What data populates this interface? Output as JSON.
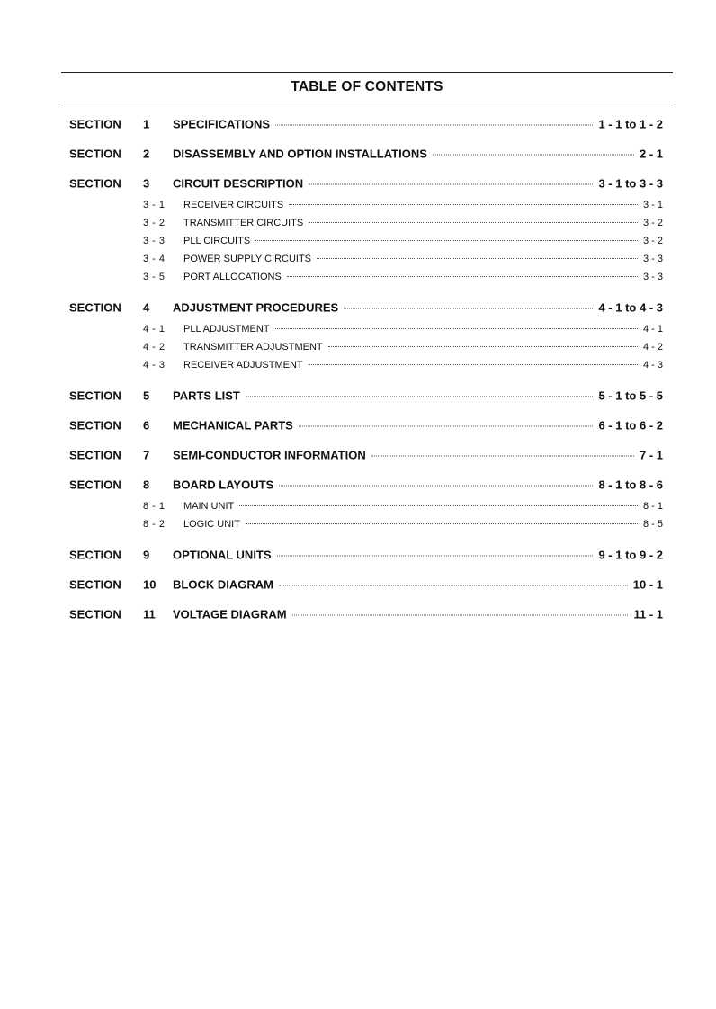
{
  "title": "TABLE OF CONTENTS",
  "section_label": "SECTION",
  "sections": [
    {
      "number": "1",
      "title": "SPECIFICATIONS",
      "pages": "1 - 1 to 1 - 2",
      "subsections": []
    },
    {
      "number": "2",
      "title": "DISASSEMBLY AND OPTION INSTALLATIONS",
      "pages": "2 - 1",
      "subsections": []
    },
    {
      "number": "3",
      "title": "CIRCUIT DESCRIPTION",
      "pages": "3 - 1 to 3 - 3",
      "subsections": [
        {
          "number": "3 - 1",
          "title": "RECEIVER CIRCUITS",
          "pages": "3 - 1"
        },
        {
          "number": "3 - 2",
          "title": "TRANSMITTER CIRCUITS",
          "pages": "3 - 2"
        },
        {
          "number": "3 - 3",
          "title": "PLL CIRCUITS",
          "pages": "3 - 2"
        },
        {
          "number": "3 - 4",
          "title": "POWER SUPPLY CIRCUITS",
          "pages": "3 - 3"
        },
        {
          "number": "3 - 5",
          "title": "PORT ALLOCATIONS",
          "pages": "3 - 3"
        }
      ]
    },
    {
      "number": "4",
      "title": "ADJUSTMENT PROCEDURES",
      "pages": "4 - 1 to 4 - 3",
      "subsections": [
        {
          "number": "4 - 1",
          "title": "PLL ADJUSTMENT",
          "pages": "4 - 1"
        },
        {
          "number": "4 - 2",
          "title": "TRANSMITTER ADJUSTMENT",
          "pages": "4 - 2"
        },
        {
          "number": "4 - 3",
          "title": "RECEIVER ADJUSTMENT",
          "pages": "4 - 3"
        }
      ]
    },
    {
      "number": "5",
      "title": "PARTS LIST",
      "pages": "5 - 1 to 5 - 5",
      "subsections": []
    },
    {
      "number": "6",
      "title": "MECHANICAL PARTS",
      "pages": "6 - 1 to 6 - 2",
      "subsections": []
    },
    {
      "number": "7",
      "title": "SEMI-CONDUCTOR INFORMATION",
      "pages": "7 - 1",
      "subsections": []
    },
    {
      "number": "8",
      "title": "BOARD LAYOUTS",
      "pages": "8 - 1 to 8 - 6",
      "subsections": [
        {
          "number": "8 - 1",
          "title": "MAIN UNIT",
          "pages": "8 - 1"
        },
        {
          "number": "8 - 2",
          "title": "LOGIC UNIT",
          "pages": "8 - 5"
        }
      ]
    },
    {
      "number": "9",
      "title": "OPTIONAL UNITS",
      "pages": "9 - 1 to 9 - 2",
      "subsections": []
    },
    {
      "number": "10",
      "title": "BLOCK DIAGRAM",
      "pages": "10 - 1",
      "subsections": []
    },
    {
      "number": "11",
      "title": "VOLTAGE DIAGRAM",
      "pages": "11 - 1",
      "subsections": []
    }
  ]
}
